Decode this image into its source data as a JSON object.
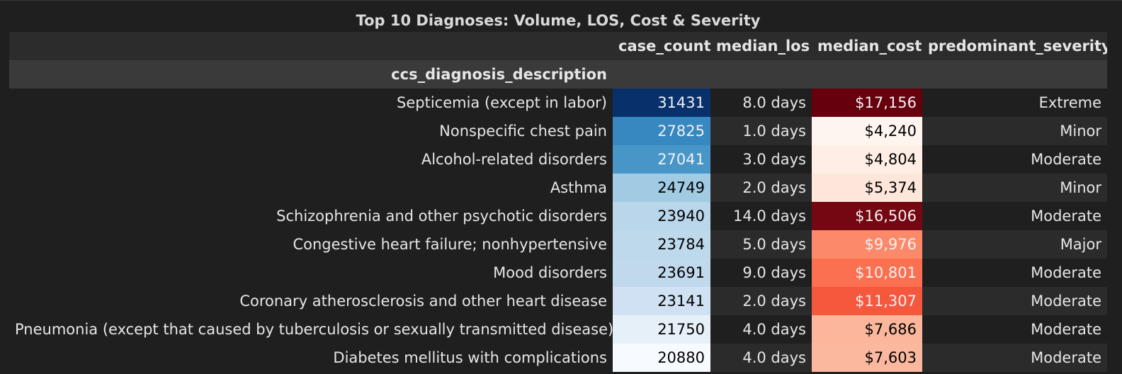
{
  "title": "Top 10 Diagnoses: Volume, LOS, Cost & Severity",
  "columns": [
    "case_count",
    "median_los",
    "median_cost",
    "predominant_severity"
  ],
  "index_name": "ccs_diagnosis_description",
  "rows": [
    {
      "diagnosis": "Septicemia (except in labor)",
      "case_count": "31431",
      "median_los": "8.0 days",
      "median_cost": "$17,156",
      "predominant_severity": "Extreme",
      "case_bg": "#08306b",
      "case_fg": "#f1f1f1",
      "cost_bg": "#67000d",
      "cost_fg": "#f1f1f1"
    },
    {
      "diagnosis": "Nonspecific chest pain",
      "case_count": "27825",
      "median_los": "1.0 days",
      "median_cost": "$4,240",
      "predominant_severity": "Minor",
      "case_bg": "#3787c0",
      "case_fg": "#f1f1f1",
      "cost_bg": "#fff5f0",
      "cost_fg": "#000000"
    },
    {
      "diagnosis": "Alcohol-related disorders",
      "case_count": "27041",
      "median_los": "3.0 days",
      "median_cost": "$4,804",
      "predominant_severity": "Moderate",
      "case_bg": "#4896c8",
      "case_fg": "#f1f1f1",
      "cost_bg": "#ffeee6",
      "cost_fg": "#000000"
    },
    {
      "diagnosis": "Asthma",
      "case_count": "24749",
      "median_los": "2.0 days",
      "median_cost": "$5,374",
      "predominant_severity": "Minor",
      "case_bg": "#a0cbe2",
      "case_fg": "#000000",
      "cost_bg": "#fee6da",
      "cost_fg": "#000000"
    },
    {
      "diagnosis": "Schizophrenia and other psychotic disorders",
      "case_count": "23940",
      "median_los": "14.0 days",
      "median_cost": "$16,506",
      "predominant_severity": "Moderate",
      "case_bg": "#bad6eb",
      "case_fg": "#000000",
      "cost_bg": "#740711",
      "cost_fg": "#f1f1f1"
    },
    {
      "diagnosis": "Congestive heart failure; nonhypertensive",
      "case_count": "23784",
      "median_los": "5.0 days",
      "median_cost": "$9,976",
      "predominant_severity": "Major",
      "case_bg": "#bed8ec",
      "case_fg": "#000000",
      "cost_bg": "#fc8a6a",
      "cost_fg": "#f1f1f1"
    },
    {
      "diagnosis": "Mood disorders",
      "case_count": "23691",
      "median_los": "9.0 days",
      "median_cost": "$10,801",
      "predominant_severity": "Moderate",
      "case_bg": "#c1d9ed",
      "case_fg": "#000000",
      "cost_bg": "#fb7050",
      "cost_fg": "#f1f1f1"
    },
    {
      "diagnosis": "Coronary atherosclerosis and other heart disease",
      "case_count": "23141",
      "median_los": "2.0 days",
      "median_cost": "$11,307",
      "predominant_severity": "Moderate",
      "case_bg": "#cfe1f2",
      "case_fg": "#000000",
      "cost_bg": "#f6583e",
      "cost_fg": "#f1f1f1"
    },
    {
      "diagnosis": "Pneumonia (except that caused by tuberculosis or sexually transmitted disease)",
      "case_count": "21750",
      "median_los": "4.0 days",
      "median_cost": "$7,686",
      "predominant_severity": "Moderate",
      "case_bg": "#e6f0f9",
      "case_fg": "#000000",
      "cost_bg": "#fcb69b",
      "cost_fg": "#000000"
    },
    {
      "diagnosis": "Diabetes mellitus with complications",
      "case_count": "20880",
      "median_los": "4.0 days",
      "median_cost": "$7,603",
      "predominant_severity": "Moderate",
      "case_bg": "#f7fbff",
      "case_fg": "#000000",
      "cost_bg": "#fcb89e",
      "cost_fg": "#000000"
    }
  ]
}
